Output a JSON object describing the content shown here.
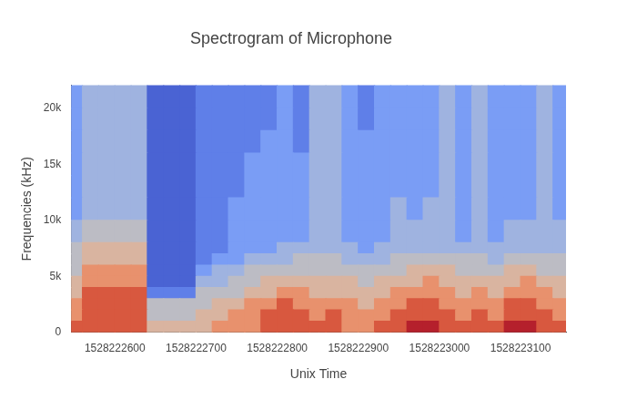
{
  "chart_data": {
    "type": "heatmap",
    "title": "Spectrogram of Microphone",
    "x_label": "Unix Time",
    "y_label": "Frequencies (kHz)",
    "x": [
      1528222550,
      1528222570,
      1528222590,
      1528222610,
      1528222630,
      1528222650,
      1528222670,
      1528222690,
      1528222710,
      1528222730,
      1528222750,
      1528222770,
      1528222790,
      1528222810,
      1528222830,
      1528222850,
      1528222870,
      1528222890,
      1528222910,
      1528222930,
      1528222950,
      1528222970,
      1528222990,
      1528223010,
      1528223030,
      1528223050,
      1528223070,
      1528223090,
      1528223110,
      1528223130,
      1528223150
    ],
    "y_bins": [
      0,
      1000,
      2000,
      3000,
      4000,
      5000,
      6000,
      7000,
      8000,
      10000,
      12000,
      14000,
      16000,
      18000,
      20000,
      22050
    ],
    "cells": [
      [
        8,
        7,
        7,
        6,
        6,
        5,
        5,
        5,
        4,
        3,
        3,
        3,
        3,
        3,
        3
      ],
      [
        8,
        8,
        8,
        8,
        7,
        7,
        6,
        6,
        5,
        4,
        4,
        4,
        4,
        4,
        4
      ],
      [
        8,
        8,
        8,
        8,
        7,
        7,
        6,
        6,
        5,
        4,
        4,
        4,
        4,
        4,
        4
      ],
      [
        8,
        8,
        8,
        8,
        7,
        7,
        6,
        6,
        5,
        4,
        4,
        4,
        4,
        4,
        4
      ],
      [
        8,
        8,
        8,
        8,
        7,
        7,
        6,
        6,
        5,
        4,
        4,
        4,
        4,
        4,
        4
      ],
      [
        6,
        5,
        5,
        2,
        1,
        1,
        1,
        1,
        1,
        1,
        1,
        1,
        1,
        1,
        1
      ],
      [
        6,
        5,
        5,
        2,
        1,
        1,
        1,
        1,
        1,
        1,
        1,
        1,
        1,
        1,
        1
      ],
      [
        6,
        5,
        5,
        2,
        1,
        1,
        1,
        1,
        1,
        1,
        1,
        1,
        1,
        1,
        1
      ],
      [
        6,
        6,
        5,
        5,
        4,
        3,
        2,
        2,
        2,
        2,
        2,
        2,
        2,
        2,
        2
      ],
      [
        7,
        6,
        6,
        5,
        4,
        4,
        3,
        2,
        2,
        2,
        2,
        2,
        2,
        2,
        2
      ],
      [
        7,
        7,
        6,
        5,
        5,
        4,
        3,
        3,
        3,
        3,
        2,
        2,
        2,
        2,
        2
      ],
      [
        7,
        7,
        7,
        6,
        5,
        5,
        4,
        3,
        3,
        3,
        3,
        3,
        2,
        2,
        2
      ],
      [
        8,
        8,
        7,
        6,
        6,
        5,
        4,
        3,
        3,
        3,
        3,
        3,
        3,
        2,
        2
      ],
      [
        8,
        8,
        8,
        7,
        6,
        5,
        4,
        4,
        3,
        3,
        3,
        3,
        3,
        3,
        3
      ],
      [
        8,
        8,
        7,
        7,
        6,
        5,
        5,
        4,
        3,
        3,
        3,
        3,
        2,
        2,
        2
      ],
      [
        8,
        7,
        7,
        6,
        6,
        5,
        5,
        4,
        4,
        4,
        4,
        4,
        4,
        4,
        4
      ],
      [
        8,
        8,
        7,
        6,
        6,
        5,
        5,
        4,
        4,
        4,
        4,
        4,
        4,
        4,
        4
      ],
      [
        7,
        7,
        7,
        6,
        6,
        5,
        4,
        4,
        3,
        3,
        3,
        3,
        3,
        3,
        3
      ],
      [
        7,
        7,
        6,
        6,
        5,
        5,
        4,
        3,
        3,
        3,
        3,
        3,
        3,
        2,
        2
      ],
      [
        8,
        7,
        7,
        6,
        6,
        5,
        4,
        4,
        3,
        3,
        3,
        3,
        3,
        3,
        3
      ],
      [
        8,
        8,
        7,
        7,
        6,
        5,
        5,
        4,
        4,
        4,
        3,
        3,
        3,
        3,
        3
      ],
      [
        9,
        8,
        8,
        7,
        6,
        6,
        5,
        4,
        4,
        3,
        3,
        3,
        3,
        3,
        3
      ],
      [
        9,
        8,
        8,
        7,
        7,
        6,
        5,
        4,
        4,
        4,
        3,
        3,
        3,
        3,
        3
      ],
      [
        8,
        8,
        7,
        7,
        6,
        6,
        5,
        4,
        4,
        4,
        4,
        4,
        4,
        4,
        4
      ],
      [
        8,
        7,
        7,
        6,
        6,
        5,
        5,
        4,
        3,
        3,
        3,
        3,
        3,
        3,
        3
      ],
      [
        8,
        8,
        7,
        7,
        6,
        5,
        5,
        4,
        4,
        4,
        4,
        4,
        4,
        4,
        4
      ],
      [
        8,
        7,
        7,
        6,
        6,
        5,
        4,
        4,
        3,
        3,
        3,
        3,
        3,
        3,
        3
      ],
      [
        9,
        8,
        8,
        7,
        6,
        6,
        5,
        4,
        4,
        3,
        3,
        3,
        3,
        3,
        3
      ],
      [
        9,
        8,
        8,
        7,
        7,
        6,
        5,
        4,
        4,
        3,
        3,
        3,
        3,
        3,
        3
      ],
      [
        8,
        8,
        7,
        7,
        6,
        5,
        5,
        4,
        4,
        4,
        4,
        4,
        4,
        4,
        4
      ],
      [
        8,
        7,
        7,
        6,
        6,
        5,
        5,
        4,
        4,
        3,
        3,
        3,
        3,
        3,
        3
      ]
    ],
    "zlim": [
      0,
      9
    ],
    "xlim": [
      1528222546,
      1528223156
    ],
    "xticks": [
      1528222600,
      1528222700,
      1528222800,
      1528222900,
      1528223000,
      1528223100
    ],
    "ylim": [
      0,
      22050
    ],
    "yticks": [
      0,
      {
        "value": 5000,
        "label": "5k"
      },
      {
        "value": 10000,
        "label": "10k"
      },
      {
        "value": 15000,
        "label": "15k"
      },
      {
        "value": 20000,
        "label": "20k"
      }
    ],
    "grid": false
  }
}
